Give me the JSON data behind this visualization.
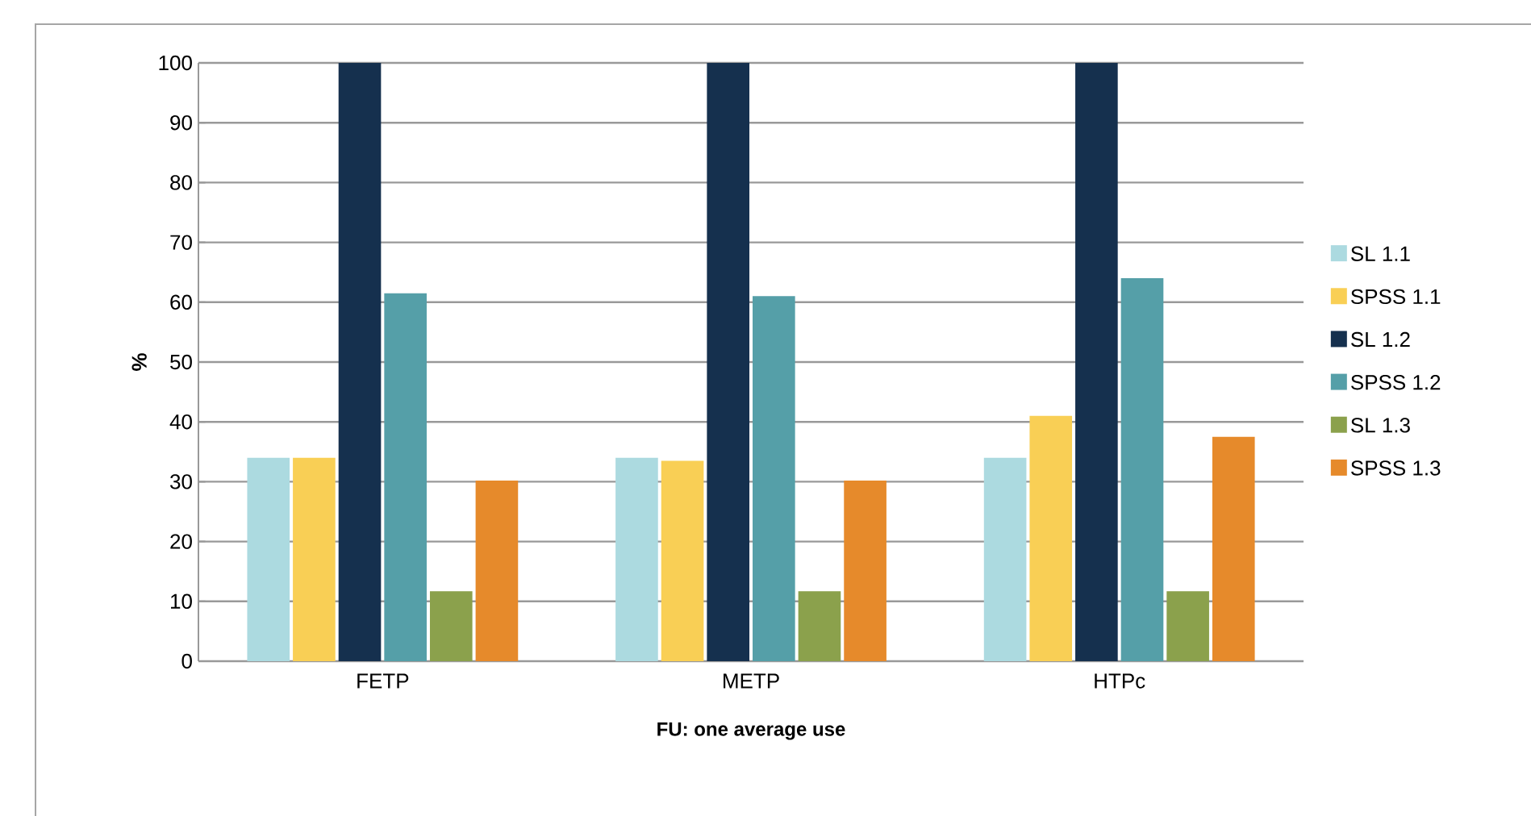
{
  "chart_data": {
    "type": "bar",
    "xlabel": "FU: one average use",
    "ylabel": "%",
    "categories": [
      "FETP",
      "METP",
      "HTPc"
    ],
    "series": [
      {
        "name": "SL 1.1",
        "color": "#acdae0",
        "values": [
          34,
          34,
          34
        ]
      },
      {
        "name": "SPSS 1.1",
        "color": "#f9cf55",
        "values": [
          34,
          33.5,
          41
        ]
      },
      {
        "name": "SL 1.2",
        "color": "#15304e",
        "values": [
          100,
          100,
          100
        ]
      },
      {
        "name": "SPSS 1.2",
        "color": "#559fa8",
        "values": [
          61.5,
          61,
          64
        ]
      },
      {
        "name": "SL 1.3",
        "color": "#8ba14c",
        "values": [
          11.7,
          11.7,
          11.7
        ]
      },
      {
        "name": "SPSS 1.3",
        "color": "#e68a2b",
        "values": [
          30.2,
          30.2,
          37.5
        ]
      }
    ],
    "ylim": [
      0,
      100
    ],
    "yticks": [
      0,
      10,
      20,
      30,
      40,
      50,
      60,
      70,
      80,
      90,
      100
    ],
    "grid": "y",
    "legend": "right"
  }
}
